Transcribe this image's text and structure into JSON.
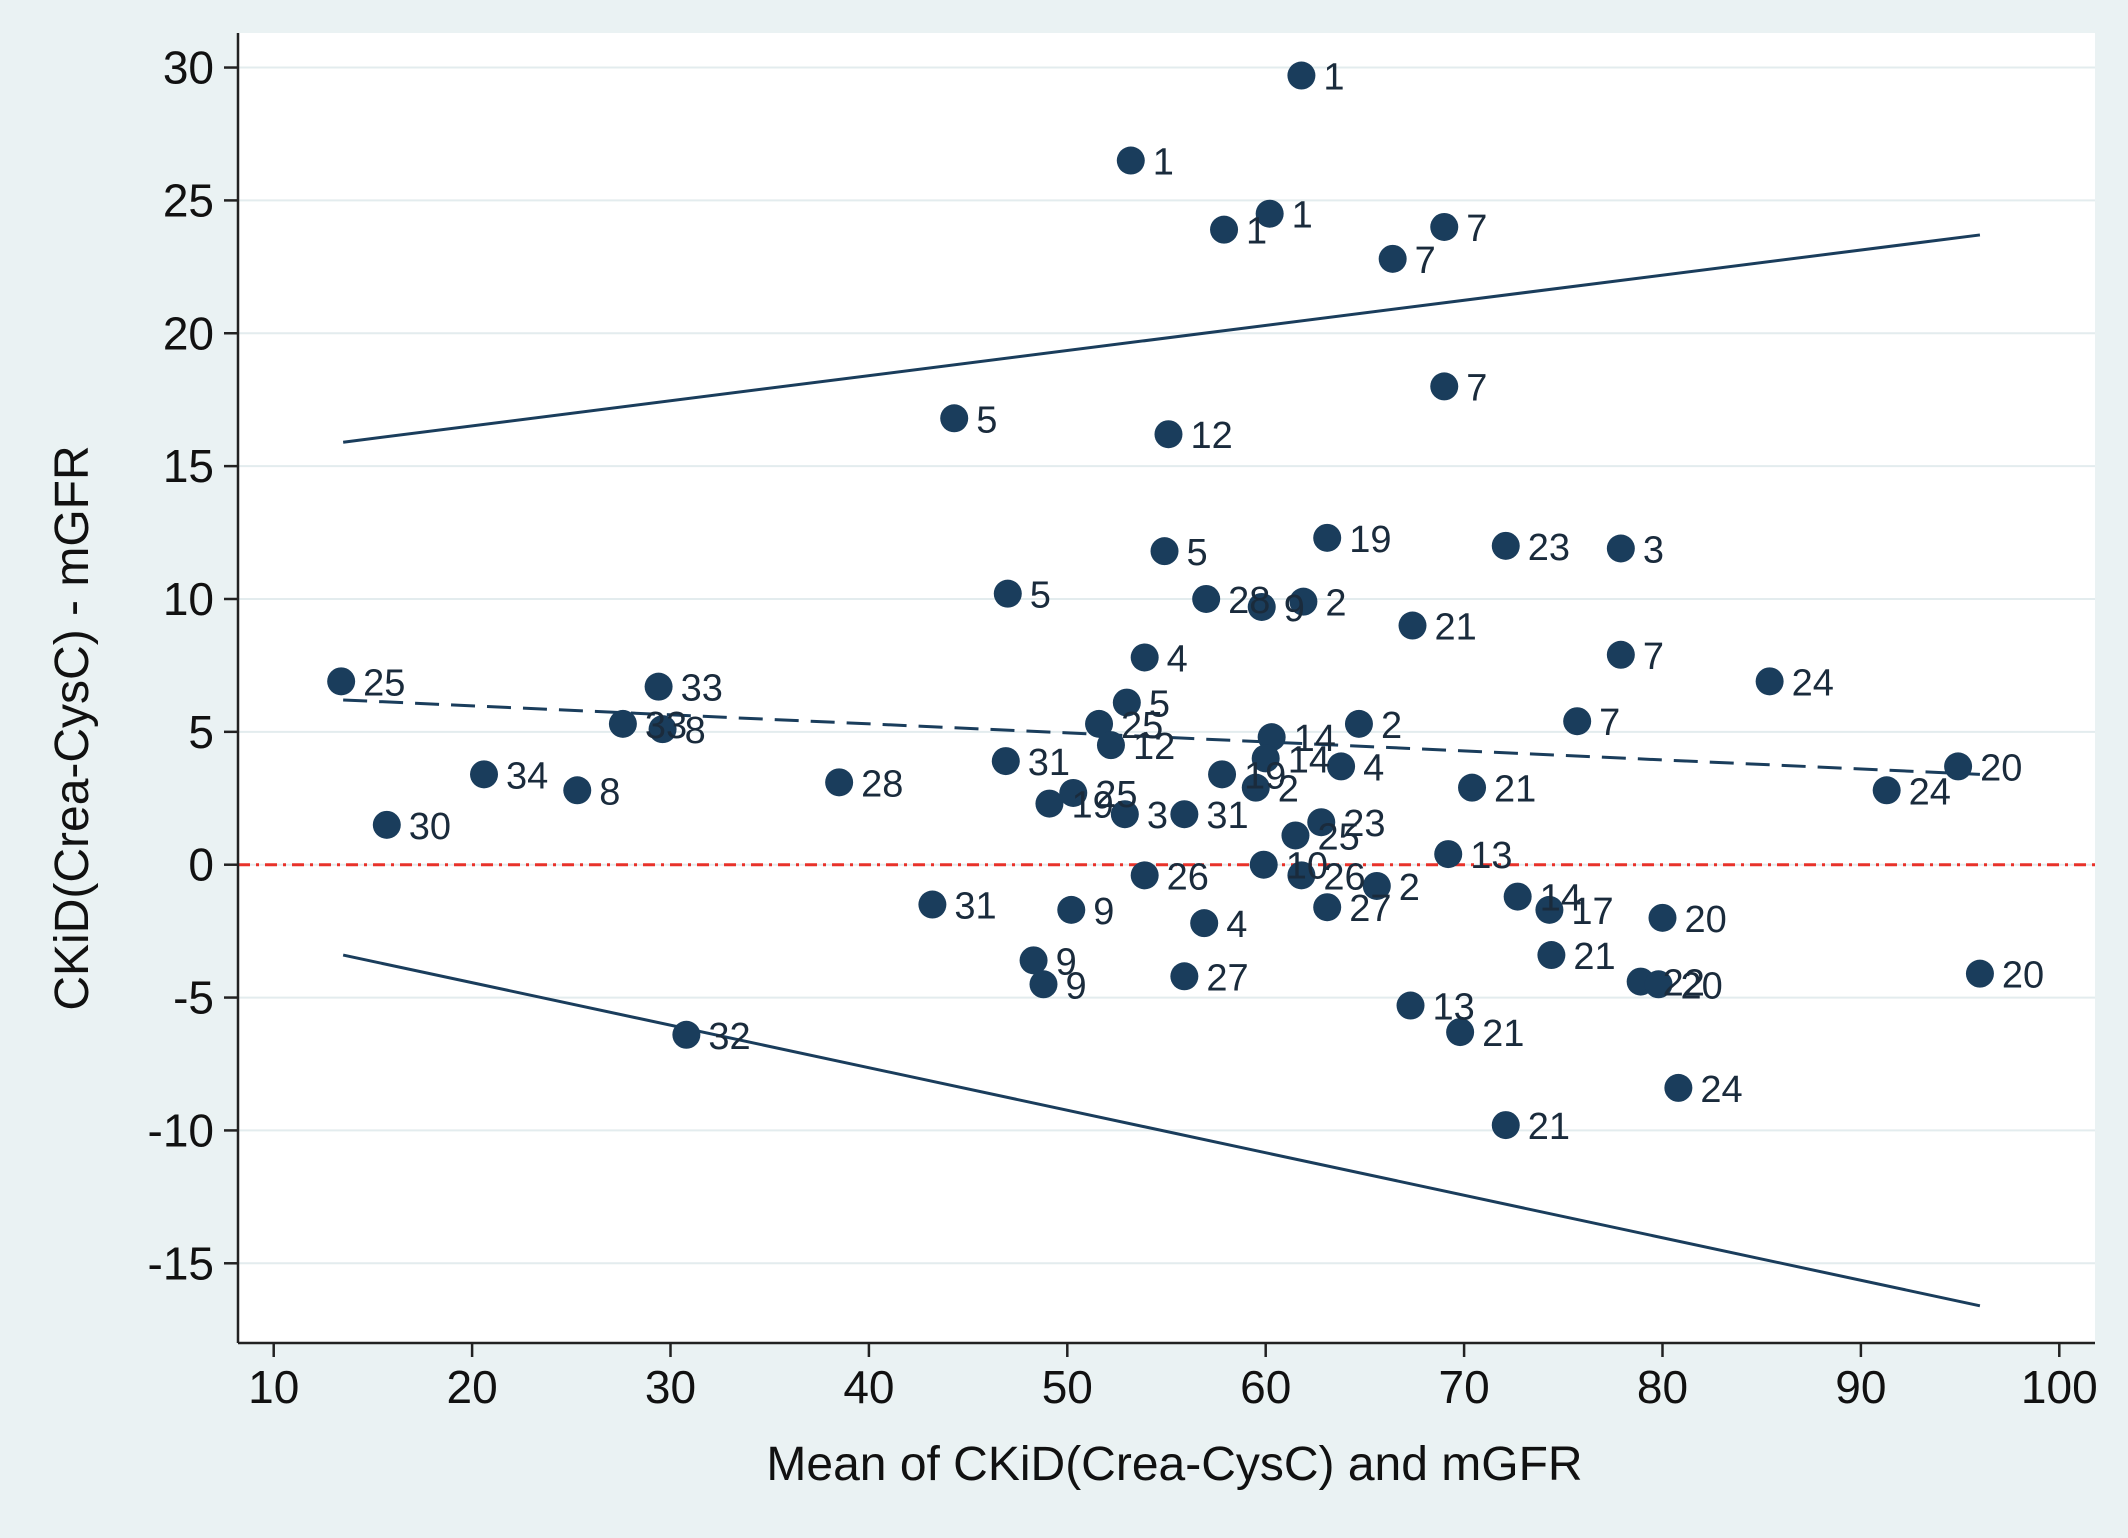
{
  "colors": {
    "outer_bg": "#eaf2f3",
    "plot_bg": "#ffffff",
    "grid": "#e3ecee",
    "marker": "#1a3d5c",
    "line": "#1a3d5c",
    "zero_line": "#e8322a",
    "text": "#111111"
  },
  "chart_data": {
    "type": "scatter",
    "title": "",
    "xlabel": "Mean of CKiD(Crea-CysC) and mGFR",
    "ylabel": "CKiD(Crea-CysC) - mGFR",
    "xlim": [
      8.2,
      101.8
    ],
    "ylim": [
      -18,
      31.3
    ],
    "x_ticks": [
      "10",
      "20",
      "30",
      "40",
      "50",
      "60",
      "70",
      "80",
      "90",
      "100"
    ],
    "y_ticks": [
      "-15",
      "-10",
      "-5",
      "0",
      "5",
      "10",
      "15",
      "20",
      "25",
      "30"
    ],
    "grid": "horizontal",
    "legend": "none",
    "reference_lines": [
      {
        "kind": "upper limit of agreement",
        "style": "solid",
        "x": [
          13.5,
          96
        ],
        "y": [
          15.9,
          23.7
        ]
      },
      {
        "kind": "mean difference",
        "style": "dashed",
        "x": [
          13.5,
          96
        ],
        "y": [
          6.2,
          3.4
        ]
      },
      {
        "kind": "lower limit of agreement",
        "style": "solid",
        "x": [
          13.5,
          96
        ],
        "y": [
          -3.4,
          -16.6
        ]
      },
      {
        "kind": "zero",
        "style": "dash-dot",
        "x": [
          8.2,
          101.8
        ],
        "y": [
          0,
          0
        ]
      }
    ],
    "points": [
      {
        "x": 61.8,
        "y": 29.7,
        "label": "1"
      },
      {
        "x": 53.2,
        "y": 26.5,
        "label": "1"
      },
      {
        "x": 60.2,
        "y": 24.5,
        "label": "1"
      },
      {
        "x": 57.9,
        "y": 23.9,
        "label": "1"
      },
      {
        "x": 69.0,
        "y": 24.0,
        "label": "7"
      },
      {
        "x": 66.4,
        "y": 22.8,
        "label": "7"
      },
      {
        "x": 69.0,
        "y": 18.0,
        "label": "7"
      },
      {
        "x": 44.3,
        "y": 16.8,
        "label": "5"
      },
      {
        "x": 55.1,
        "y": 16.2,
        "label": "12"
      },
      {
        "x": 63.1,
        "y": 12.3,
        "label": "19"
      },
      {
        "x": 72.1,
        "y": 12.0,
        "label": "23"
      },
      {
        "x": 77.9,
        "y": 11.9,
        "label": "3"
      },
      {
        "x": 54.9,
        "y": 11.8,
        "label": "5"
      },
      {
        "x": 47.0,
        "y": 10.2,
        "label": "5"
      },
      {
        "x": 57.0,
        "y": 10.0,
        "label": "28"
      },
      {
        "x": 61.9,
        "y": 9.9,
        "label": "2"
      },
      {
        "x": 59.8,
        "y": 9.7,
        "label": "9"
      },
      {
        "x": 67.4,
        "y": 9.0,
        "label": "21"
      },
      {
        "x": 53.9,
        "y": 7.8,
        "label": "4"
      },
      {
        "x": 77.9,
        "y": 7.9,
        "label": "7"
      },
      {
        "x": 85.4,
        "y": 6.9,
        "label": "24"
      },
      {
        "x": 13.4,
        "y": 6.9,
        "label": "25"
      },
      {
        "x": 29.4,
        "y": 6.7,
        "label": "33"
      },
      {
        "x": 53.0,
        "y": 6.1,
        "label": "5"
      },
      {
        "x": 27.6,
        "y": 5.3,
        "label": "33"
      },
      {
        "x": 29.6,
        "y": 5.1,
        "label": "8"
      },
      {
        "x": 51.6,
        "y": 5.3,
        "label": "25"
      },
      {
        "x": 64.7,
        "y": 5.3,
        "label": "2"
      },
      {
        "x": 75.7,
        "y": 5.4,
        "label": "7"
      },
      {
        "x": 60.3,
        "y": 4.8,
        "label": "14"
      },
      {
        "x": 52.2,
        "y": 4.5,
        "label": "12"
      },
      {
        "x": 60.0,
        "y": 4.0,
        "label": "14"
      },
      {
        "x": 46.9,
        "y": 3.9,
        "label": "31"
      },
      {
        "x": 63.8,
        "y": 3.7,
        "label": "4"
      },
      {
        "x": 20.6,
        "y": 3.4,
        "label": "34"
      },
      {
        "x": 57.8,
        "y": 3.4,
        "label": "19"
      },
      {
        "x": 38.5,
        "y": 3.1,
        "label": "28"
      },
      {
        "x": 59.5,
        "y": 2.9,
        "label": "2"
      },
      {
        "x": 70.4,
        "y": 2.9,
        "label": "21"
      },
      {
        "x": 25.3,
        "y": 2.8,
        "label": "8"
      },
      {
        "x": 91.3,
        "y": 2.8,
        "label": "24"
      },
      {
        "x": 94.9,
        "y": 3.7,
        "label": "20"
      },
      {
        "x": 50.3,
        "y": 2.7,
        "label": "25"
      },
      {
        "x": 49.1,
        "y": 2.3,
        "label": "19"
      },
      {
        "x": 52.9,
        "y": 1.9,
        "label": "3"
      },
      {
        "x": 55.9,
        "y": 1.9,
        "label": "31"
      },
      {
        "x": 62.8,
        "y": 1.6,
        "label": "23"
      },
      {
        "x": 61.5,
        "y": 1.1,
        "label": "25"
      },
      {
        "x": 15.7,
        "y": 1.5,
        "label": "30"
      },
      {
        "x": 69.2,
        "y": 0.4,
        "label": "13"
      },
      {
        "x": 59.9,
        "y": 0.0,
        "label": "10"
      },
      {
        "x": 61.8,
        "y": -0.4,
        "label": "26"
      },
      {
        "x": 53.9,
        "y": -0.4,
        "label": "26"
      },
      {
        "x": 65.6,
        "y": -0.8,
        "label": "2"
      },
      {
        "x": 72.7,
        "y": -1.2,
        "label": "14"
      },
      {
        "x": 43.2,
        "y": -1.5,
        "label": "31"
      },
      {
        "x": 63.1,
        "y": -1.6,
        "label": "27"
      },
      {
        "x": 74.3,
        "y": -1.7,
        "label": "17"
      },
      {
        "x": 50.2,
        "y": -1.7,
        "label": "9"
      },
      {
        "x": 80.0,
        "y": -2.0,
        "label": "20"
      },
      {
        "x": 56.9,
        "y": -2.2,
        "label": "4"
      },
      {
        "x": 74.4,
        "y": -3.4,
        "label": "21"
      },
      {
        "x": 48.3,
        "y": -3.6,
        "label": "9"
      },
      {
        "x": 55.9,
        "y": -4.2,
        "label": "27"
      },
      {
        "x": 96.0,
        "y": -4.1,
        "label": "20"
      },
      {
        "x": 78.9,
        "y": -4.4,
        "label": "22"
      },
      {
        "x": 79.8,
        "y": -4.5,
        "label": "20"
      },
      {
        "x": 48.8,
        "y": -4.5,
        "label": "9"
      },
      {
        "x": 67.3,
        "y": -5.3,
        "label": "13"
      },
      {
        "x": 30.8,
        "y": -6.4,
        "label": "32"
      },
      {
        "x": 69.8,
        "y": -6.3,
        "label": "21"
      },
      {
        "x": 80.8,
        "y": -8.4,
        "label": "24"
      },
      {
        "x": 72.1,
        "y": -9.8,
        "label": "21"
      }
    ]
  }
}
